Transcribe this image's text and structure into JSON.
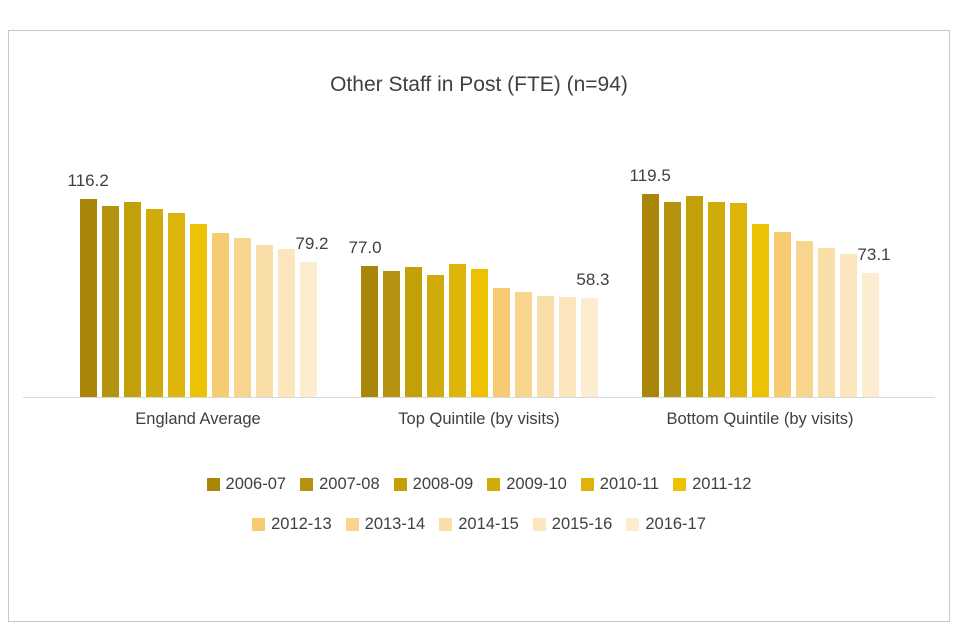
{
  "chart_data": {
    "type": "bar",
    "title": "Other Staff in Post (FTE) (n=94)",
    "categories": [
      "England Average",
      "Top Quintile (by visits)",
      "Bottom Quintile (by visits)"
    ],
    "series": [
      {
        "name": "2006-07",
        "color": "#a98608",
        "values": [
          116.2,
          77.0,
          119.5
        ]
      },
      {
        "name": "2007-08",
        "color": "#b59310",
        "values": [
          112.5,
          74.0,
          114.5
        ]
      },
      {
        "name": "2008-09",
        "color": "#c2a008",
        "values": [
          114.5,
          76.5,
          118.5
        ]
      },
      {
        "name": "2009-10",
        "color": "#cfac0a",
        "values": [
          110.5,
          71.5,
          114.5
        ]
      },
      {
        "name": "2010-11",
        "color": "#ddb50a",
        "values": [
          108.0,
          78.5,
          114.0
        ]
      },
      {
        "name": "2011-12",
        "color": "#edc104",
        "values": [
          102.0,
          75.0,
          101.5
        ]
      },
      {
        "name": "2012-13",
        "color": "#f6cb72",
        "values": [
          96.5,
          64.0,
          97.0
        ]
      },
      {
        "name": "2013-14",
        "color": "#f8d58e",
        "values": [
          93.5,
          61.5,
          92.0
        ]
      },
      {
        "name": "2014-15",
        "color": "#fadea7",
        "values": [
          89.5,
          59.5,
          87.5
        ]
      },
      {
        "name": "2015-16",
        "color": "#fbe6bd",
        "values": [
          87.0,
          59.0,
          84.0
        ]
      },
      {
        "name": "2016-17",
        "color": "#fcedd1",
        "values": [
          79.2,
          58.3,
          73.1
        ]
      }
    ],
    "data_labels": {
      "first": [
        "116.2",
        "77.0",
        "119.5"
      ],
      "last": [
        "79.2",
        "58.3",
        "73.1"
      ]
    },
    "ylim": [
      0,
      135
    ],
    "grid": false,
    "legend_position": "bottom",
    "axis_color": "#d9d9d9",
    "text_color": "#404040"
  }
}
